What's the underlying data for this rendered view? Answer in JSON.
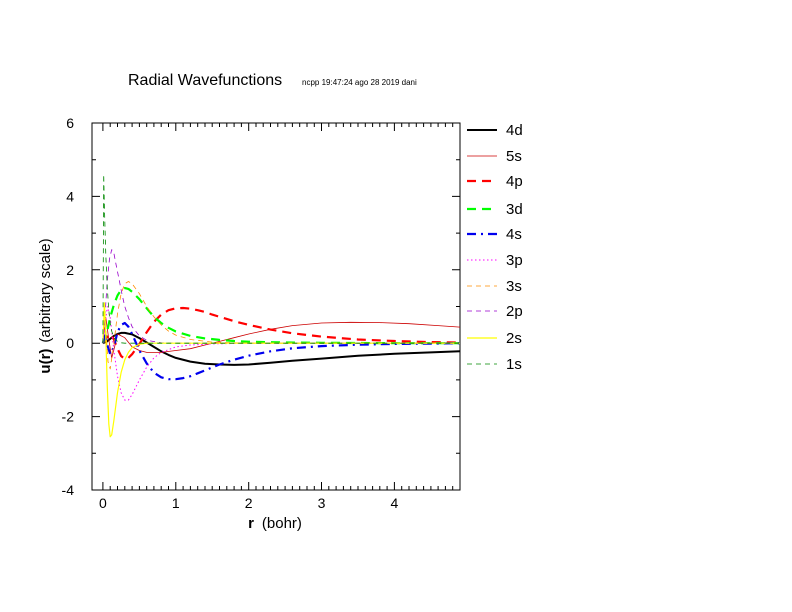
{
  "chart_data": {
    "type": "line",
    "title": "Radial Wavefunctions",
    "stamp": "ncpp 19:47:24 ago 28 2019 dani",
    "xlabel_bold": "r",
    "xlabel_rest": "(bohr)",
    "ylabel_bold": "u(r)",
    "ylabel_rest": "(arbitrary scale)",
    "xlim": [
      -0.15,
      4.9
    ],
    "ylim": [
      -4,
      6
    ],
    "xticks": [
      0,
      1,
      2,
      3,
      4
    ],
    "yticks": [
      -4,
      -2,
      0,
      2,
      4,
      6
    ],
    "xtick_labels": [
      "0",
      "1",
      "2",
      "3",
      "4"
    ],
    "ytick_labels": [
      "-4",
      "-2",
      "0",
      "2",
      "4",
      "6"
    ],
    "legend_position": "right",
    "series": [
      {
        "name": "4d",
        "color": "#000000",
        "style": "solid",
        "width": 2,
        "x": [
          0,
          0.05,
          0.1,
          0.15,
          0.2,
          0.25,
          0.3,
          0.4,
          0.5,
          0.6,
          0.7,
          0.8,
          0.9,
          1.0,
          1.2,
          1.4,
          1.6,
          1.8,
          2.0,
          2.3,
          2.6,
          3.0,
          3.5,
          4.0,
          4.5,
          4.9
        ],
        "y": [
          0,
          0.04,
          0.12,
          0.2,
          0.25,
          0.28,
          0.28,
          0.24,
          0.14,
          0.02,
          -0.1,
          -0.22,
          -0.32,
          -0.4,
          -0.5,
          -0.56,
          -0.58,
          -0.59,
          -0.58,
          -0.53,
          -0.48,
          -0.42,
          -0.34,
          -0.29,
          -0.25,
          -0.22
        ]
      },
      {
        "name": "5s",
        "color": "#cc0000",
        "style": "solid",
        "width": 0.8,
        "x": [
          0,
          0.04,
          0.08,
          0.12,
          0.16,
          0.2,
          0.3,
          0.4,
          0.5,
          0.6,
          0.8,
          1.0,
          1.2,
          1.4,
          1.6,
          1.8,
          2.0,
          2.3,
          2.6,
          3.0,
          3.4,
          3.8,
          4.2,
          4.6,
          4.9
        ],
        "y": [
          0,
          0.7,
          0.1,
          -0.4,
          -0.1,
          0.25,
          0.15,
          -0.1,
          -0.2,
          -0.25,
          -0.25,
          -0.2,
          -0.15,
          -0.05,
          0.05,
          0.15,
          0.25,
          0.38,
          0.48,
          0.55,
          0.57,
          0.56,
          0.53,
          0.48,
          0.44
        ]
      },
      {
        "name": "4p",
        "color": "#ff0000",
        "style": "dash",
        "width": 2.2,
        "x": [
          0,
          0.05,
          0.1,
          0.15,
          0.2,
          0.25,
          0.3,
          0.35,
          0.4,
          0.5,
          0.6,
          0.7,
          0.8,
          0.9,
          1.0,
          1.1,
          1.2,
          1.3,
          1.4,
          1.5,
          1.6,
          1.8,
          2.0,
          2.3,
          2.6,
          3.0,
          3.5,
          4.0,
          4.5,
          4.9
        ],
        "y": [
          0,
          0.15,
          0.25,
          0.1,
          -0.15,
          -0.35,
          -0.43,
          -0.4,
          -0.3,
          -0.02,
          0.3,
          0.58,
          0.78,
          0.9,
          0.95,
          0.96,
          0.94,
          0.9,
          0.85,
          0.78,
          0.72,
          0.6,
          0.5,
          0.37,
          0.27,
          0.18,
          0.1,
          0.06,
          0.03,
          0.02
        ]
      },
      {
        "name": "3d",
        "color": "#00ff00",
        "style": "dash",
        "width": 2.2,
        "x": [
          0,
          0.05,
          0.1,
          0.15,
          0.2,
          0.25,
          0.3,
          0.35,
          0.4,
          0.5,
          0.6,
          0.7,
          0.8,
          0.9,
          1.0,
          1.2,
          1.4,
          1.6,
          1.8,
          2.0,
          2.5,
          3.0,
          4.0,
          4.9
        ],
        "y": [
          0,
          0.25,
          0.7,
          1.05,
          1.3,
          1.45,
          1.5,
          1.48,
          1.4,
          1.2,
          0.95,
          0.72,
          0.55,
          0.42,
          0.32,
          0.2,
          0.13,
          0.09,
          0.06,
          0.04,
          0.02,
          0.01,
          0.0,
          0.0
        ]
      },
      {
        "name": "4s",
        "color": "#0000ee",
        "style": "dashdot",
        "width": 2.2,
        "x": [
          0,
          0.03,
          0.06,
          0.1,
          0.15,
          0.2,
          0.25,
          0.3,
          0.35,
          0.4,
          0.5,
          0.6,
          0.7,
          0.8,
          0.9,
          1.0,
          1.1,
          1.2,
          1.3,
          1.4,
          1.6,
          1.8,
          2.0,
          2.3,
          2.6,
          3.0,
          3.5,
          4.0,
          4.5,
          4.9
        ],
        "y": [
          0,
          0.25,
          -0.05,
          -0.3,
          -0.1,
          0.3,
          0.5,
          0.55,
          0.45,
          0.25,
          -0.2,
          -0.55,
          -0.8,
          -0.93,
          -0.98,
          -0.98,
          -0.95,
          -0.9,
          -0.82,
          -0.74,
          -0.58,
          -0.45,
          -0.34,
          -0.22,
          -0.14,
          -0.08,
          -0.04,
          -0.02,
          -0.01,
          0.0
        ]
      },
      {
        "name": "3p",
        "color": "#ff00ff",
        "style": "dot",
        "width": 1,
        "x": [
          0,
          0.03,
          0.06,
          0.1,
          0.15,
          0.2,
          0.25,
          0.3,
          0.35,
          0.4,
          0.5,
          0.6,
          0.7,
          0.8,
          1.0,
          1.2,
          1.5,
          2.0,
          3.0,
          4.9
        ],
        "y": [
          0,
          0.5,
          1.0,
          0.7,
          -0.2,
          -0.9,
          -1.35,
          -1.55,
          -1.55,
          -1.4,
          -1.0,
          -0.65,
          -0.4,
          -0.25,
          -0.1,
          -0.05,
          -0.02,
          0,
          0,
          0
        ]
      },
      {
        "name": "3s",
        "color": "#ff8c00",
        "style": "dash",
        "width": 0.8,
        "x": [
          0,
          0.02,
          0.04,
          0.07,
          0.1,
          0.15,
          0.2,
          0.25,
          0.3,
          0.35,
          0.4,
          0.5,
          0.6,
          0.7,
          0.8,
          0.9,
          1.0,
          1.2,
          1.5,
          2.0,
          3.0,
          4.9
        ],
        "y": [
          0,
          0.9,
          0.4,
          -0.5,
          -0.7,
          0,
          0.8,
          1.35,
          1.62,
          1.68,
          1.62,
          1.35,
          1.0,
          0.72,
          0.5,
          0.33,
          0.22,
          0.1,
          0.03,
          0,
          0,
          0
        ]
      },
      {
        "name": "2p",
        "color": "#9900cc",
        "style": "dash",
        "width": 0.8,
        "x": [
          0,
          0.03,
          0.06,
          0.09,
          0.12,
          0.15,
          0.18,
          0.22,
          0.26,
          0.3,
          0.35,
          0.4,
          0.5,
          0.6,
          0.8,
          1.0,
          1.5,
          2.0,
          4.9
        ],
        "y": [
          0,
          0.8,
          1.7,
          2.3,
          2.55,
          2.45,
          2.15,
          1.75,
          1.35,
          1.0,
          0.7,
          0.45,
          0.2,
          0.08,
          0.01,
          0,
          0,
          0,
          0
        ]
      },
      {
        "name": "2s",
        "color": "#ffff00",
        "style": "solid",
        "width": 1.2,
        "x": [
          0,
          0.02,
          0.04,
          0.06,
          0.08,
          0.1,
          0.12,
          0.15,
          0.2,
          0.25,
          0.3,
          0.35,
          0.4,
          0.5,
          0.6,
          0.8,
          1.0,
          1.5,
          2.0,
          4.9
        ],
        "y": [
          0,
          1.1,
          0.2,
          -1.2,
          -2.2,
          -2.55,
          -2.5,
          -2.1,
          -1.35,
          -0.8,
          -0.45,
          -0.25,
          -0.12,
          -0.03,
          0,
          0,
          0,
          0,
          0,
          0
        ]
      },
      {
        "name": "1s",
        "color": "#008800",
        "style": "dash",
        "width": 0.8,
        "x": [
          0,
          0.01,
          0.02,
          0.04,
          0.06,
          0.08,
          0.1,
          0.12,
          0.15,
          0.2,
          0.25,
          0.3,
          0.4,
          0.6,
          1.0,
          2.0,
          4.9
        ],
        "y": [
          0,
          4.6,
          3.7,
          2.4,
          1.5,
          0.9,
          0.55,
          0.33,
          0.15,
          0.05,
          0.01,
          0,
          0,
          0,
          0,
          0,
          0
        ]
      }
    ]
  }
}
